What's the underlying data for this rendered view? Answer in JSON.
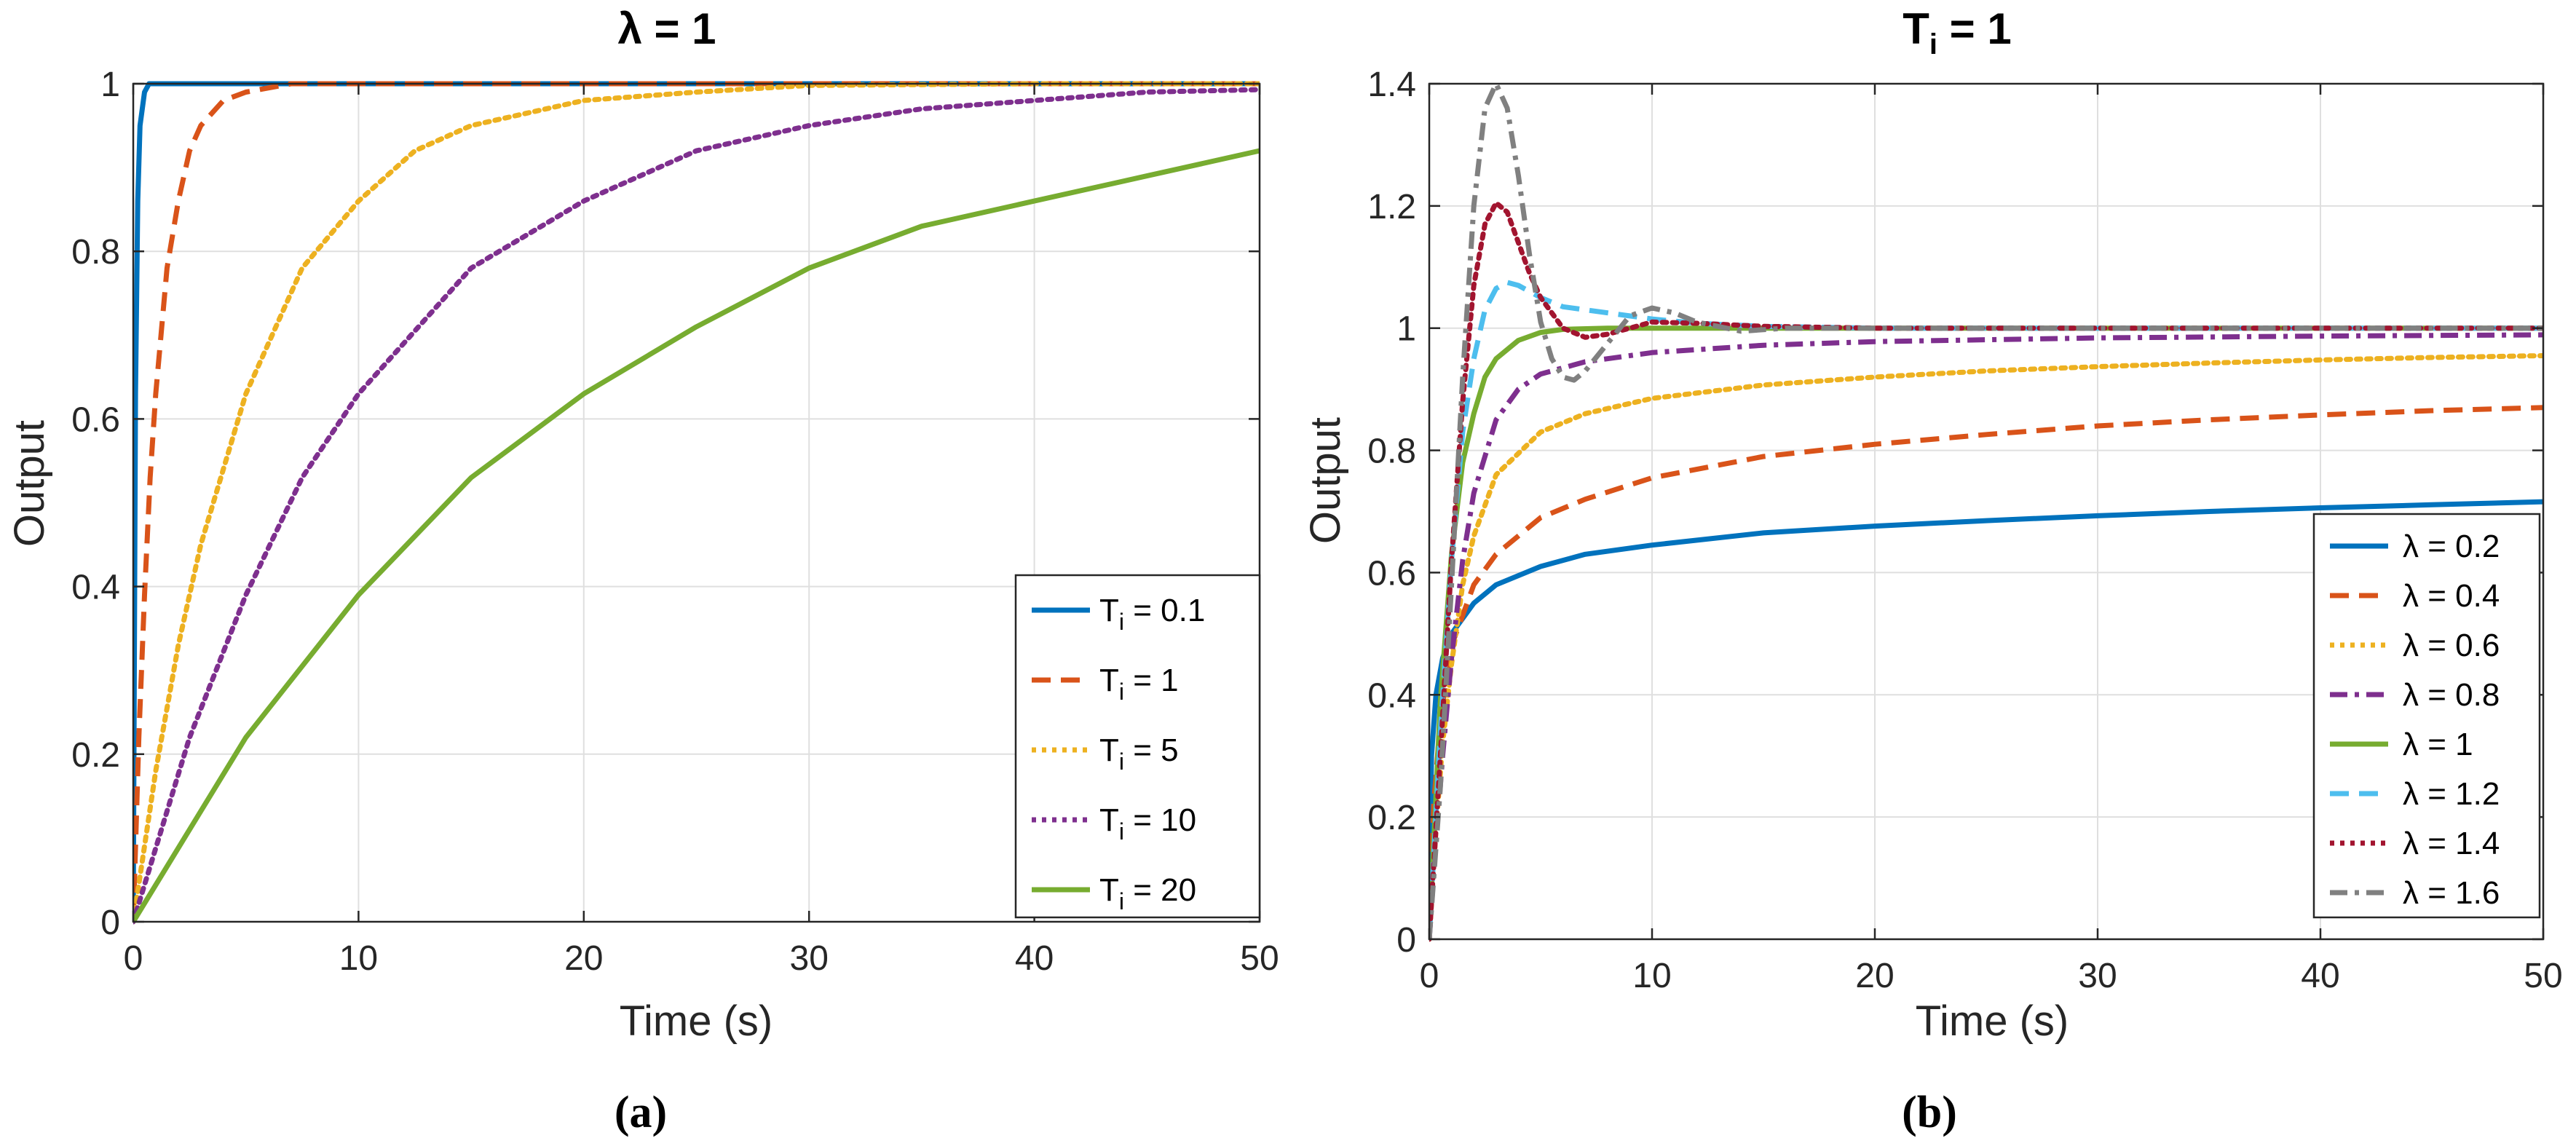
{
  "chart_data": [
    {
      "type": "line",
      "title": "λ = 1",
      "xlabel": "Time (s)",
      "ylabel": "Output",
      "xlim": [
        0,
        50
      ],
      "ylim": [
        0,
        1
      ],
      "xticks": [
        "0",
        "10",
        "20",
        "30",
        "40",
        "50"
      ],
      "yticks": [
        "0",
        "0.2",
        "0.4",
        "0.6",
        "0.8",
        "1"
      ],
      "legend_position": "bottom-right",
      "caption": "(a)",
      "series": [
        {
          "name": "T",
          "subscript": "i",
          "suffix": " = 0.1",
          "color": "#0072BD",
          "dash": "solid",
          "x": [
            0,
            0.1,
            0.2,
            0.3,
            0.5,
            0.7,
            1,
            1.5,
            2,
            3,
            5,
            10,
            20,
            30,
            40,
            50
          ],
          "y": [
            0,
            0.63,
            0.86,
            0.95,
            0.99,
            1.0,
            1.0,
            1.0,
            1.0,
            1.0,
            1.0,
            1.0,
            1.0,
            1.0,
            1.0,
            1.0
          ]
        },
        {
          "name": "T",
          "subscript": "i",
          "suffix": " = 1",
          "color": "#D95319",
          "dash": "dashed",
          "x": [
            0,
            0.25,
            0.5,
            0.75,
            1,
            1.5,
            2,
            2.5,
            3,
            4,
            5,
            7,
            10,
            20,
            30,
            40,
            50
          ],
          "y": [
            0,
            0.22,
            0.39,
            0.53,
            0.63,
            0.78,
            0.86,
            0.92,
            0.95,
            0.98,
            0.99,
            1.0,
            1.0,
            1.0,
            1.0,
            1.0,
            1.0
          ]
        },
        {
          "name": "T",
          "subscript": "i",
          "suffix": " = 5",
          "color": "#EDB120",
          "dash": "dotted",
          "x": [
            0,
            1,
            2,
            3,
            5,
            7.5,
            10,
            12.5,
            15,
            20,
            25,
            30,
            35,
            40,
            50
          ],
          "y": [
            0,
            0.18,
            0.33,
            0.45,
            0.63,
            0.78,
            0.86,
            0.92,
            0.95,
            0.98,
            0.99,
            0.998,
            0.999,
            1.0,
            1.0
          ]
        },
        {
          "name": "T",
          "subscript": "i",
          "suffix": " = 10",
          "color": "#7E2F8E",
          "dash": "dotted",
          "x": [
            0,
            2.5,
            5,
            7.5,
            10,
            15,
            20,
            25,
            30,
            35,
            40,
            45,
            50
          ],
          "y": [
            0,
            0.22,
            0.39,
            0.53,
            0.63,
            0.78,
            0.86,
            0.92,
            0.95,
            0.97,
            0.98,
            0.99,
            0.993
          ]
        },
        {
          "name": "T",
          "subscript": "i",
          "suffix": " = 20",
          "color": "#77AC30",
          "dash": "solid",
          "x": [
            0,
            5,
            10,
            15,
            20,
            25,
            30,
            35,
            40,
            45,
            50
          ],
          "y": [
            0,
            0.22,
            0.39,
            0.53,
            0.63,
            0.71,
            0.78,
            0.83,
            0.86,
            0.89,
            0.92
          ]
        }
      ]
    },
    {
      "type": "line",
      "title": "T",
      "title_subscript": "i",
      "title_suffix": " = 1",
      "xlabel": "Time (s)",
      "ylabel": "Output",
      "xlim": [
        0,
        50
      ],
      "ylim": [
        0,
        1.4
      ],
      "xticks": [
        "0",
        "10",
        "20",
        "30",
        "40",
        "50"
      ],
      "yticks": [
        "0",
        "0.2",
        "0.4",
        "0.6",
        "0.8",
        "1",
        "1.2",
        "1.4"
      ],
      "legend_position": "bottom-right",
      "caption": "(b)",
      "series": [
        {
          "name": "λ = 0.2",
          "color": "#0072BD",
          "dash": "solid",
          "x": [
            0,
            0.1,
            0.3,
            0.6,
            1,
            2,
            3,
            5,
            7,
            10,
            15,
            20,
            25,
            30,
            35,
            40,
            45,
            50
          ],
          "y": [
            0,
            0.3,
            0.4,
            0.46,
            0.5,
            0.55,
            0.58,
            0.61,
            0.63,
            0.645,
            0.665,
            0.676,
            0.685,
            0.693,
            0.7,
            0.706,
            0.711,
            0.716
          ]
        },
        {
          "name": "λ = 0.4",
          "color": "#D95319",
          "dash": "dashed",
          "x": [
            0,
            0.2,
            0.5,
            1,
            2,
            3,
            5,
            7,
            10,
            15,
            20,
            25,
            30,
            35,
            40,
            45,
            50
          ],
          "y": [
            0,
            0.22,
            0.36,
            0.48,
            0.58,
            0.63,
            0.69,
            0.72,
            0.755,
            0.79,
            0.81,
            0.826,
            0.84,
            0.85,
            0.858,
            0.865,
            0.87
          ]
        },
        {
          "name": "λ = 0.6",
          "color": "#EDB120",
          "dash": "dotted",
          "x": [
            0,
            0.3,
            0.6,
            1,
            1.5,
            2,
            3,
            5,
            7,
            10,
            15,
            20,
            25,
            30,
            35,
            40,
            45,
            50
          ],
          "y": [
            0,
            0.18,
            0.32,
            0.45,
            0.58,
            0.66,
            0.76,
            0.83,
            0.86,
            0.885,
            0.907,
            0.92,
            0.93,
            0.937,
            0.943,
            0.948,
            0.952,
            0.955
          ]
        },
        {
          "name": "λ = 0.8",
          "color": "#7E2F8E",
          "dash": "dashdot",
          "x": [
            0,
            0.3,
            0.6,
            1,
            1.5,
            2,
            3,
            4,
            5,
            7,
            10,
            15,
            20,
            30,
            40,
            50
          ],
          "y": [
            0,
            0.16,
            0.3,
            0.46,
            0.62,
            0.73,
            0.85,
            0.9,
            0.925,
            0.945,
            0.96,
            0.972,
            0.978,
            0.984,
            0.987,
            0.989
          ]
        },
        {
          "name": "λ = 1",
          "color": "#77AC30",
          "dash": "solid",
          "x": [
            0,
            0.5,
            1,
            1.5,
            2,
            2.5,
            3,
            4,
            5,
            6,
            8,
            10,
            20,
            30,
            40,
            50
          ],
          "y": [
            0,
            0.39,
            0.63,
            0.78,
            0.86,
            0.92,
            0.95,
            0.98,
            0.993,
            0.998,
            1.0,
            1.0,
            1.0,
            1.0,
            1.0,
            1.0
          ]
        },
        {
          "name": "λ = 1.2",
          "color": "#4DBEEE",
          "dash": "dashed",
          "x": [
            0,
            0.5,
            1,
            1.5,
            2,
            2.5,
            3,
            3.5,
            4,
            5,
            6,
            7,
            8,
            9,
            10,
            12,
            15,
            20,
            30,
            40,
            50
          ],
          "y": [
            0,
            0.34,
            0.62,
            0.83,
            0.95,
            1.03,
            1.065,
            1.075,
            1.07,
            1.05,
            1.035,
            1.03,
            1.025,
            1.02,
            1.015,
            1.008,
            1.003,
            1.0,
            1.0,
            1.0,
            1.0
          ]
        },
        {
          "name": "λ = 1.4",
          "color": "#A2142F",
          "dash": "dotted",
          "x": [
            0,
            0.5,
            1,
            1.5,
            2,
            2.5,
            3,
            3.5,
            4,
            4.5,
            5,
            6,
            7,
            8,
            9,
            10,
            12,
            15,
            20,
            30,
            40,
            50
          ],
          "y": [
            0,
            0.3,
            0.62,
            0.88,
            1.07,
            1.17,
            1.205,
            1.19,
            1.14,
            1.09,
            1.05,
            1.0,
            0.985,
            0.99,
            1.0,
            1.01,
            1.008,
            1.003,
            1.0,
            1.0,
            1.0,
            1.0
          ]
        },
        {
          "name": "λ = 1.6",
          "color": "#808080",
          "dash": "dashdot",
          "x": [
            0,
            0.5,
            1,
            1.5,
            2,
            2.5,
            3,
            3.5,
            4,
            4.5,
            5,
            5.5,
            6,
            6.5,
            7,
            8,
            9,
            10,
            11,
            12,
            14,
            16,
            20,
            30,
            40,
            50
          ],
          "y": [
            0,
            0.25,
            0.58,
            0.92,
            1.2,
            1.36,
            1.4,
            1.36,
            1.25,
            1.12,
            1.01,
            0.95,
            0.92,
            0.915,
            0.93,
            0.975,
            1.02,
            1.033,
            1.025,
            1.01,
            0.995,
            1.0,
            1.0,
            1.0,
            1.0,
            1.0
          ]
        }
      ]
    }
  ]
}
